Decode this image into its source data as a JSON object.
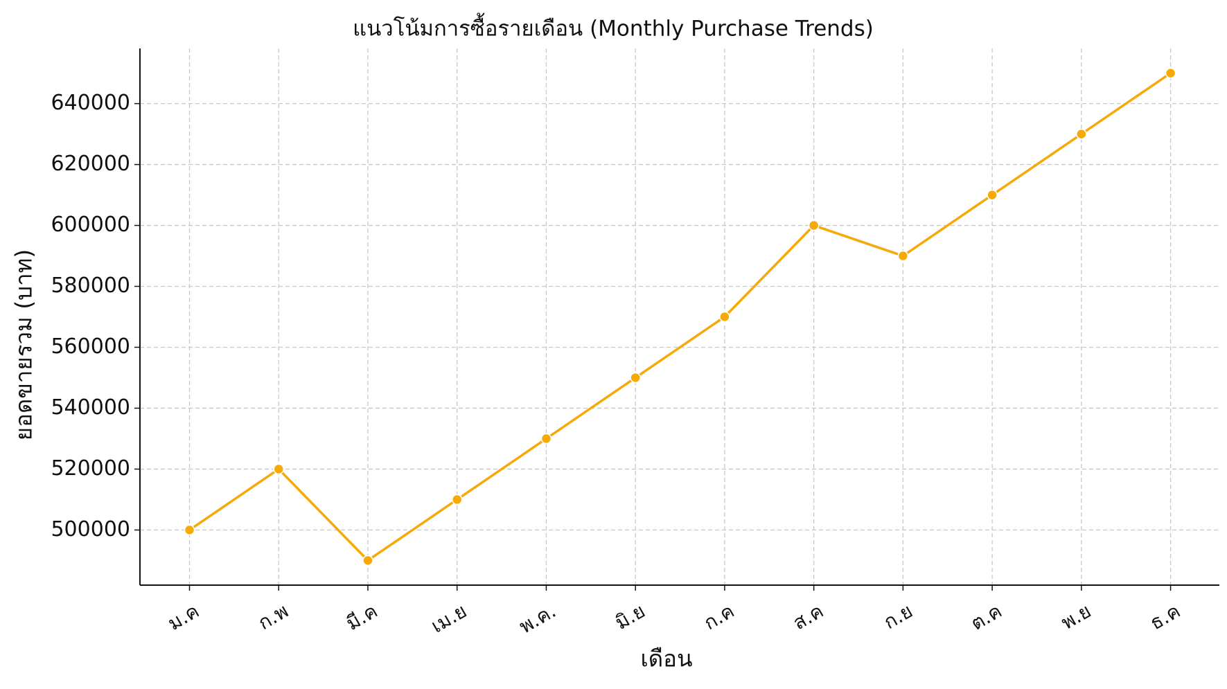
{
  "chart_data": {
    "type": "line",
    "title": "แนวโน้มการซื้อรายเดือน (Monthly Purchase Trends)",
    "x_label": "เดือน",
    "y_label": "ยอดขายรวม (บาท)",
    "categories": [
      "ม.ค",
      "ก.พ",
      "มี.ค",
      "เม.ย",
      "พ.ค.",
      "มิ.ย",
      "ก.ค",
      "ส.ค",
      "ก.ย",
      "ต.ค",
      "พ.ย",
      "ธ.ค"
    ],
    "series": [
      {
        "color": "#f5aa0a",
        "values": [
          500000,
          520000,
          490000,
          510000,
          530000,
          550000,
          570000,
          600000,
          590000,
          610000,
          630000,
          650000
        ]
      }
    ],
    "ylim": [
      481900,
      658100
    ],
    "yticks": [
      500000,
      520000,
      540000,
      560000,
      580000,
      600000,
      620000,
      640000
    ],
    "grid": true
  }
}
